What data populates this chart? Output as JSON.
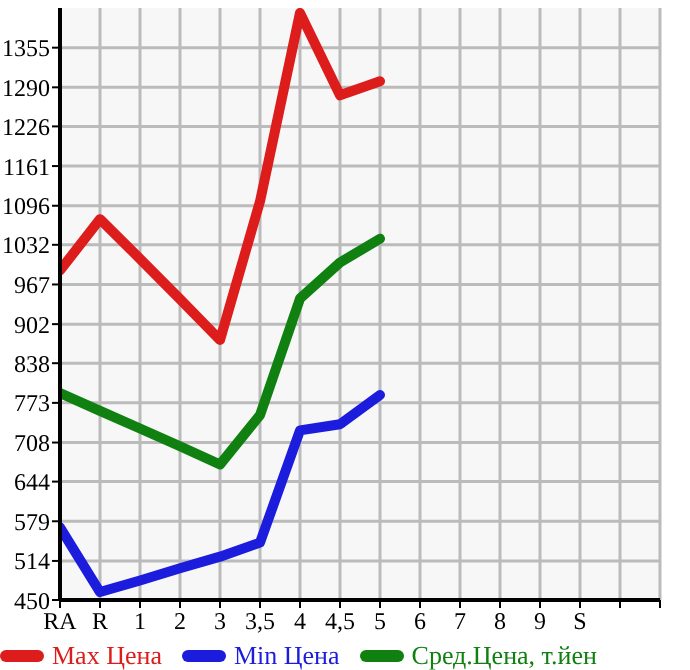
{
  "chart_data": {
    "type": "line",
    "categories": [
      "RA",
      "R",
      "1",
      "2",
      "3",
      "3,5",
      "4",
      "4,5",
      "5",
      "6",
      "7",
      "8",
      "9",
      "S",
      null,
      null
    ],
    "series": [
      {
        "name": "Max Цена",
        "color": "#dd1c1c",
        "values": [
          990,
          1074,
          1009,
          943,
          876,
          1103,
          1412,
          1277,
          1300,
          null,
          null,
          null,
          null,
          null,
          null,
          null
        ]
      },
      {
        "name": "Min Цена",
        "color": "#1c1cdd",
        "values": [
          569,
          463,
          482,
          502,
          521,
          544,
          728,
          738,
          786,
          null,
          null,
          null,
          null,
          null,
          null,
          null
        ]
      },
      {
        "name": "Сред.Цена, т.йен",
        "color": "#108010",
        "values": [
          789,
          760,
          731,
          702,
          672,
          753,
          944,
          1003,
          1042,
          null,
          null,
          null,
          null,
          null,
          null,
          null
        ]
      }
    ],
    "ylim": [
      450,
      1420
    ],
    "yticks": [
      450,
      514,
      579,
      644,
      708,
      773,
      838,
      902,
      967,
      1032,
      1096,
      1161,
      1226,
      1290,
      1355
    ],
    "grid": true,
    "legend": "bottom",
    "marker": "none",
    "line_style": "solid"
  }
}
